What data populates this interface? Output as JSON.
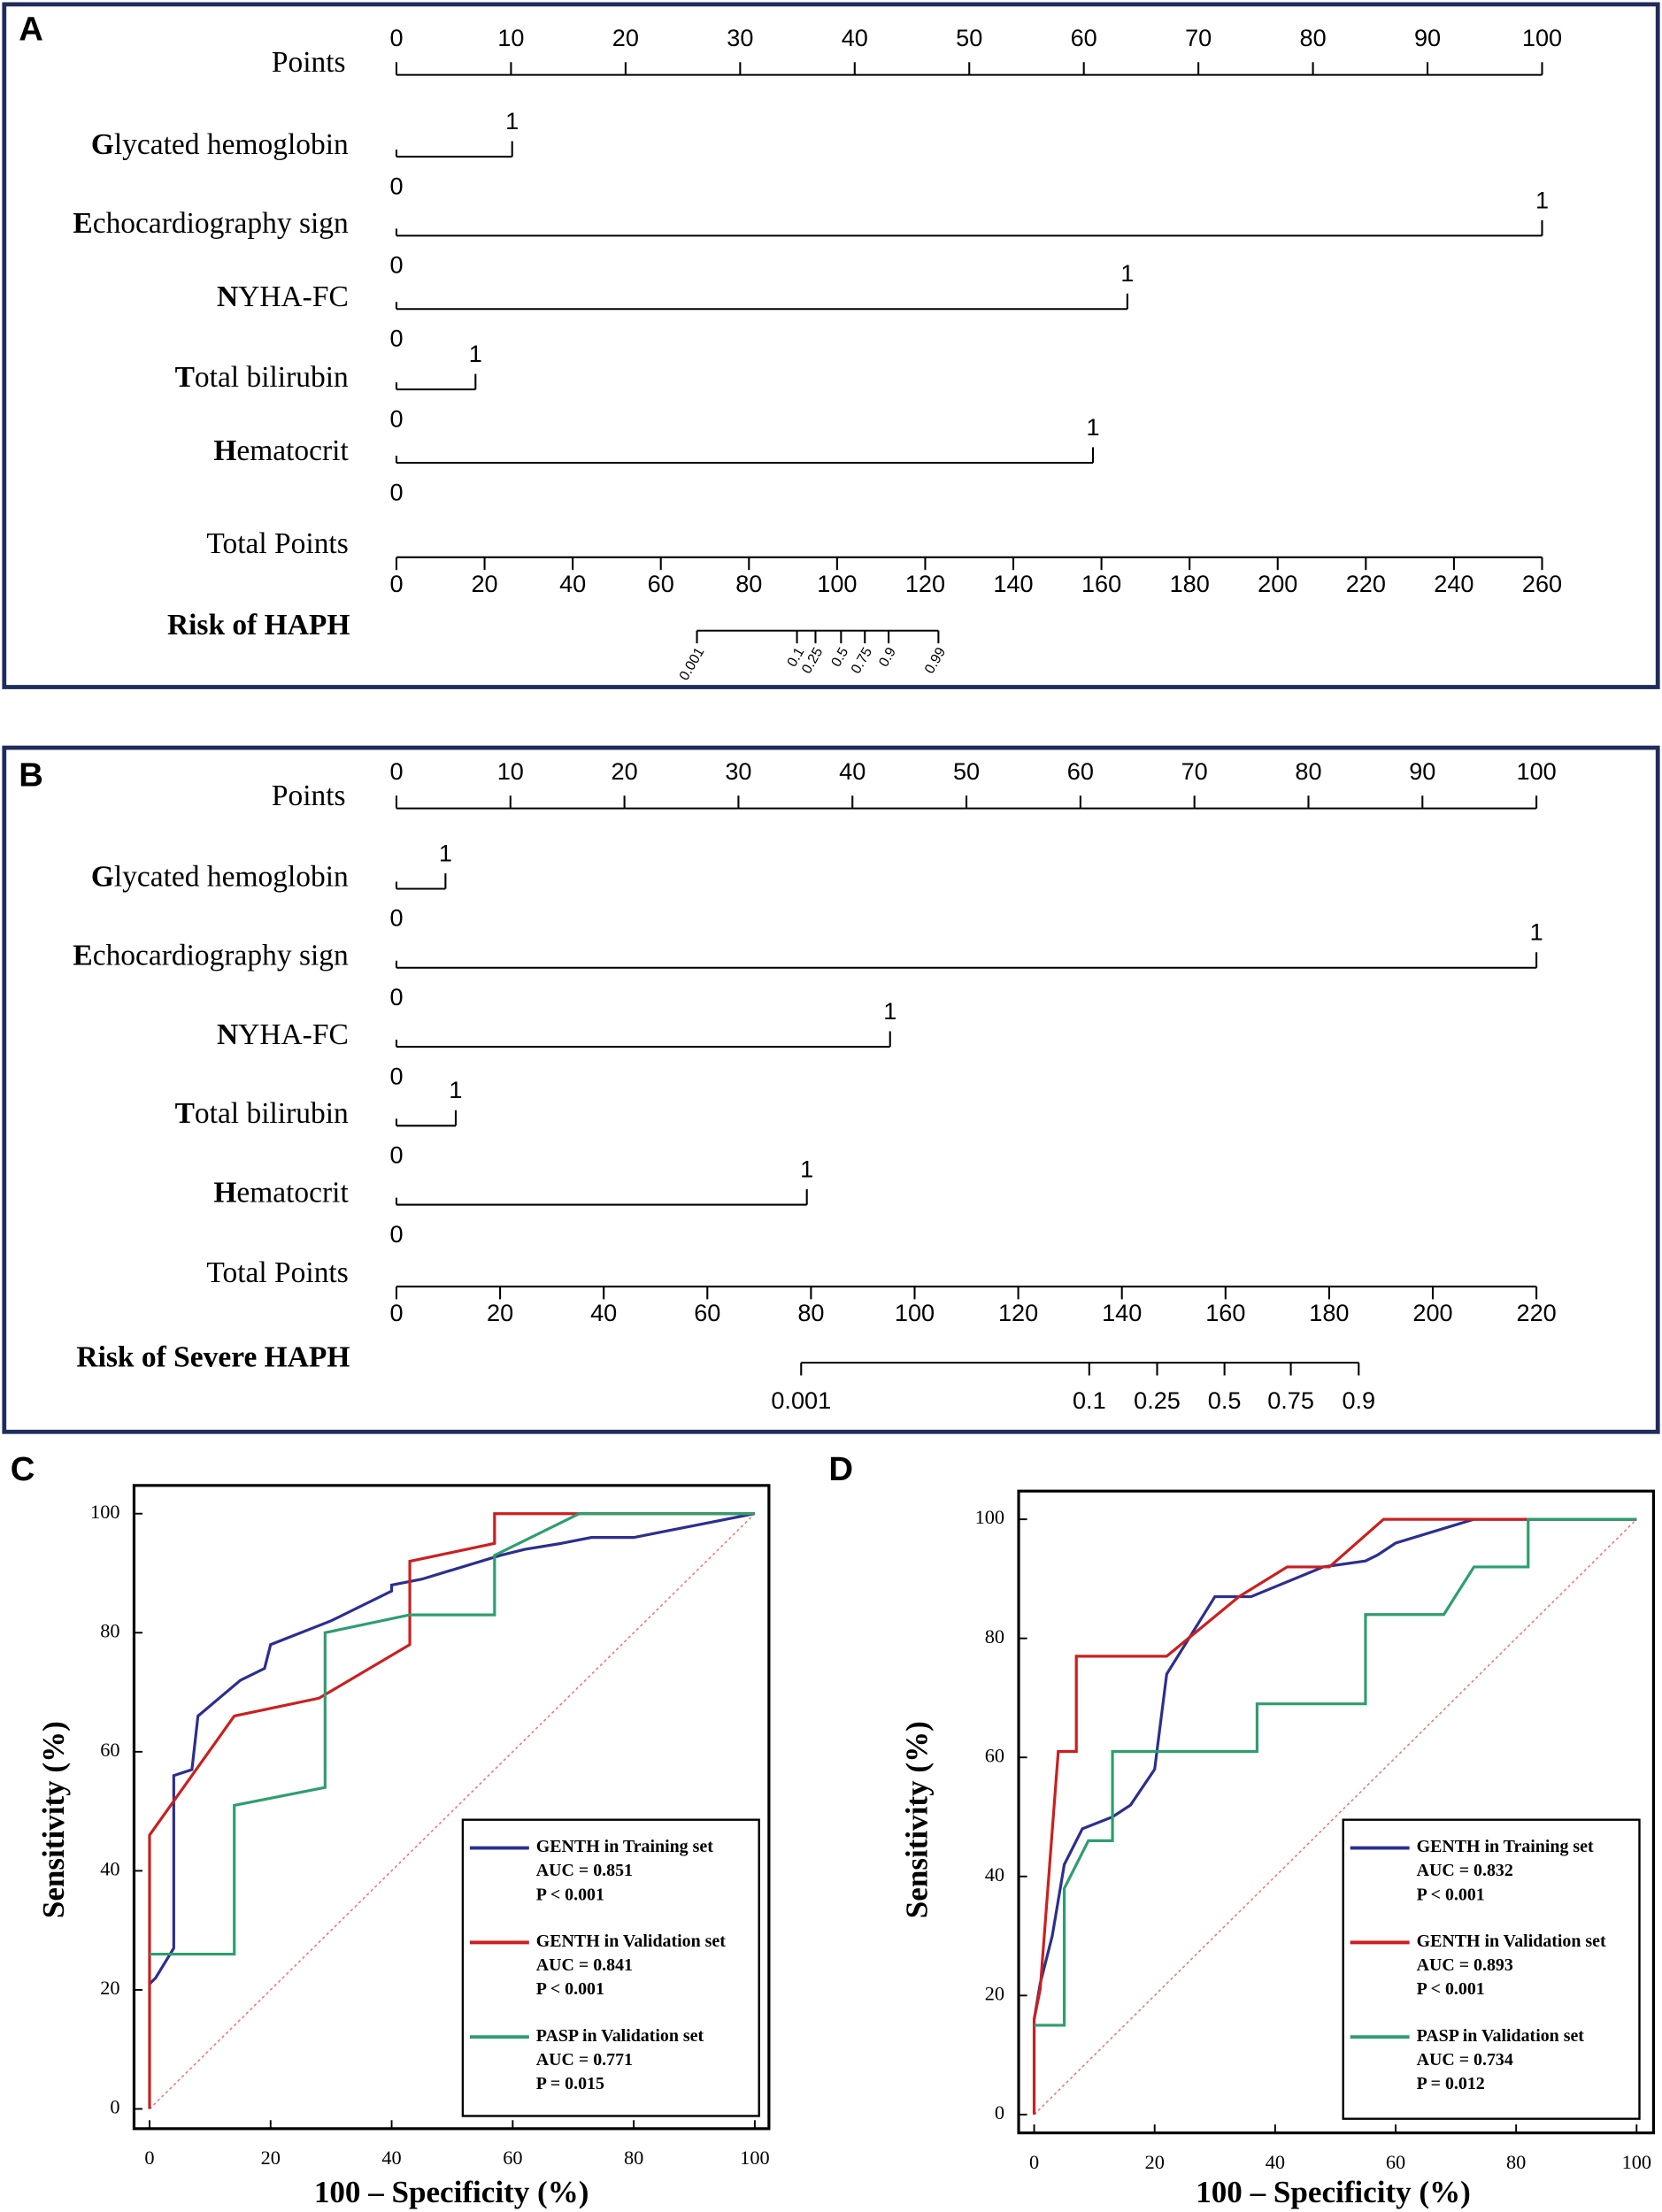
{
  "chart_data": [
    {
      "type": "nomogram",
      "panel_label": "A",
      "points_title": "Points",
      "xlim": [
        0,
        100
      ],
      "xticks": [
        0,
        10,
        20,
        30,
        40,
        50,
        60,
        70,
        80,
        90,
        100
      ],
      "predictors": [
        {
          "name": "Glycated hemoglobin",
          "levels": [
            0,
            1
          ],
          "points": [
            0,
            10.1
          ]
        },
        {
          "name": "Echocardiography sign",
          "levels": [
            0,
            1
          ],
          "points": [
            0,
            100
          ]
        },
        {
          "name": "NYHA-FC",
          "levels": [
            0,
            1
          ],
          "points": [
            0,
            63.8
          ]
        },
        {
          "name": "Total bilirubin",
          "levels": [
            0,
            1
          ],
          "points": [
            0,
            6.9
          ]
        },
        {
          "name": "Hematocrit",
          "levels": [
            0,
            1
          ],
          "points": [
            0,
            60.8
          ]
        }
      ],
      "total_title": "Total Points",
      "total_lim": [
        0,
        260
      ],
      "total_ticks": [
        0,
        20,
        40,
        60,
        80,
        100,
        120,
        140,
        160,
        180,
        200,
        220,
        240,
        260
      ],
      "risk_title": "Risk of HAPH",
      "risk_values": [
        0.001,
        0.1,
        0.25,
        0.5,
        0.75,
        0.9,
        0.99
      ],
      "risk_positions": [
        68.2,
        90.9,
        95.1,
        100.9,
        106.3,
        111.7,
        123
      ],
      "risk_labels_rotated": true
    },
    {
      "type": "nomogram",
      "panel_label": "B",
      "points_title": "Points",
      "xlim": [
        0,
        100
      ],
      "xticks": [
        0,
        10,
        20,
        30,
        40,
        50,
        60,
        70,
        80,
        90,
        100
      ],
      "predictors": [
        {
          "name": "Glycated hemoglobin",
          "levels": [
            0,
            1
          ],
          "points": [
            0,
            4.3
          ]
        },
        {
          "name": "Echocardiography sign",
          "levels": [
            0,
            1
          ],
          "points": [
            0,
            100
          ]
        },
        {
          "name": "NYHA-FC",
          "levels": [
            0,
            1
          ],
          "points": [
            0,
            43.3
          ]
        },
        {
          "name": "Total bilirubin",
          "levels": [
            0,
            1
          ],
          "points": [
            0,
            5.2
          ]
        },
        {
          "name": "Hematocrit",
          "levels": [
            0,
            1
          ],
          "points": [
            0,
            36
          ]
        }
      ],
      "total_title": "Total Points",
      "total_lim": [
        0,
        220
      ],
      "total_ticks": [
        0,
        20,
        40,
        60,
        80,
        100,
        120,
        140,
        160,
        180,
        200,
        220
      ],
      "risk_title": "Risk of Severe HAPH",
      "risk_values": [
        0.001,
        0.1,
        0.25,
        0.5,
        0.75,
        0.9
      ],
      "risk_positions": [
        78.1,
        133.7,
        146.8,
        159.8,
        172.6,
        185.7
      ],
      "risk_labels_rotated": false
    },
    {
      "type": "line",
      "panel_label": "C",
      "xlabel": "100 – Specificity (%)",
      "ylabel": "Sensitivity (%)",
      "xlim": [
        0,
        100
      ],
      "ylim": [
        0,
        100
      ],
      "xticks": [
        0,
        20,
        40,
        60,
        80,
        100
      ],
      "yticks": [
        0,
        20,
        40,
        60,
        80,
        100
      ],
      "reference_line": true,
      "legend": "lower right",
      "series": [
        {
          "name": "GENTH in Training set",
          "auc_label": "AUC = 0.851",
          "p_label": "P < 0.001",
          "color": "#2b2f8f",
          "x": [
            0,
            1,
            4,
            4,
            7,
            8,
            15,
            19,
            20,
            30,
            40,
            40,
            45,
            58,
            62,
            68,
            73,
            80,
            100
          ],
          "values": [
            21,
            22,
            27,
            56,
            57,
            66,
            72,
            74,
            78,
            82,
            87,
            88,
            89,
            93,
            94,
            95,
            96,
            96,
            100
          ]
        },
        {
          "name": "GENTH in Validation set",
          "auc_label": "AUC = 0.841",
          "p_label": "P < 0.001",
          "color": "#cc1f1f",
          "x": [
            0,
            0,
            14,
            28,
            43,
            43,
            57,
            57,
            100
          ],
          "values": [
            0,
            46,
            66,
            69,
            78,
            92,
            95,
            100,
            100
          ]
        },
        {
          "name": "PASP in Validation set",
          "auc_label": "AUC = 0.771",
          "p_label": "P = 0.015",
          "color": "#2e9e6e",
          "x": [
            0,
            14,
            14,
            29,
            29,
            43,
            57,
            57,
            71,
            100
          ],
          "values": [
            26,
            26,
            51,
            54,
            80,
            83,
            83,
            93,
            100,
            100
          ]
        }
      ]
    },
    {
      "type": "line",
      "panel_label": "D",
      "xlabel": "100 – Specificity (%)",
      "ylabel": "Sensitivity (%)",
      "xlim": [
        0,
        100
      ],
      "ylim": [
        0,
        100
      ],
      "xticks": [
        0,
        20,
        40,
        60,
        80,
        100
      ],
      "yticks": [
        0,
        20,
        40,
        60,
        80,
        100
      ],
      "reference_line": true,
      "legend": "lower right",
      "series": [
        {
          "name": "GENTH in Training set",
          "auc_label": "AUC = 0.832",
          "p_label": "P < 0.001",
          "color": "#2b2f8f",
          "x": [
            0,
            1,
            3,
            5,
            8,
            13,
            16,
            20,
            22,
            30,
            36,
            48,
            55,
            57,
            60,
            73,
            100
          ],
          "values": [
            16,
            22,
            30,
            42,
            48,
            50,
            52,
            58,
            74,
            87,
            87,
            92,
            93,
            94,
            96,
            100,
            100
          ]
        },
        {
          "name": "GENTH in Validation set",
          "auc_label": "AUC = 0.893",
          "p_label": "P < 0.001",
          "color": "#cc1f1f",
          "x": [
            0,
            0,
            1,
            4,
            7,
            7,
            22,
            34,
            42,
            49,
            58,
            100
          ],
          "values": [
            0,
            16,
            21,
            61,
            61,
            77,
            77,
            87,
            92,
            92,
            100,
            100
          ]
        },
        {
          "name": "PASP in Validation set",
          "auc_label": "AUC = 0.734",
          "p_label": "P = 0.012",
          "color": "#2e9e6e",
          "x": [
            0,
            5,
            5,
            9,
            13,
            13,
            37,
            37,
            55,
            55,
            68,
            73,
            82,
            82,
            100
          ],
          "values": [
            15,
            15,
            38,
            46,
            46,
            61,
            61,
            69,
            69,
            84,
            84,
            92,
            92,
            100,
            100
          ]
        }
      ]
    }
  ]
}
